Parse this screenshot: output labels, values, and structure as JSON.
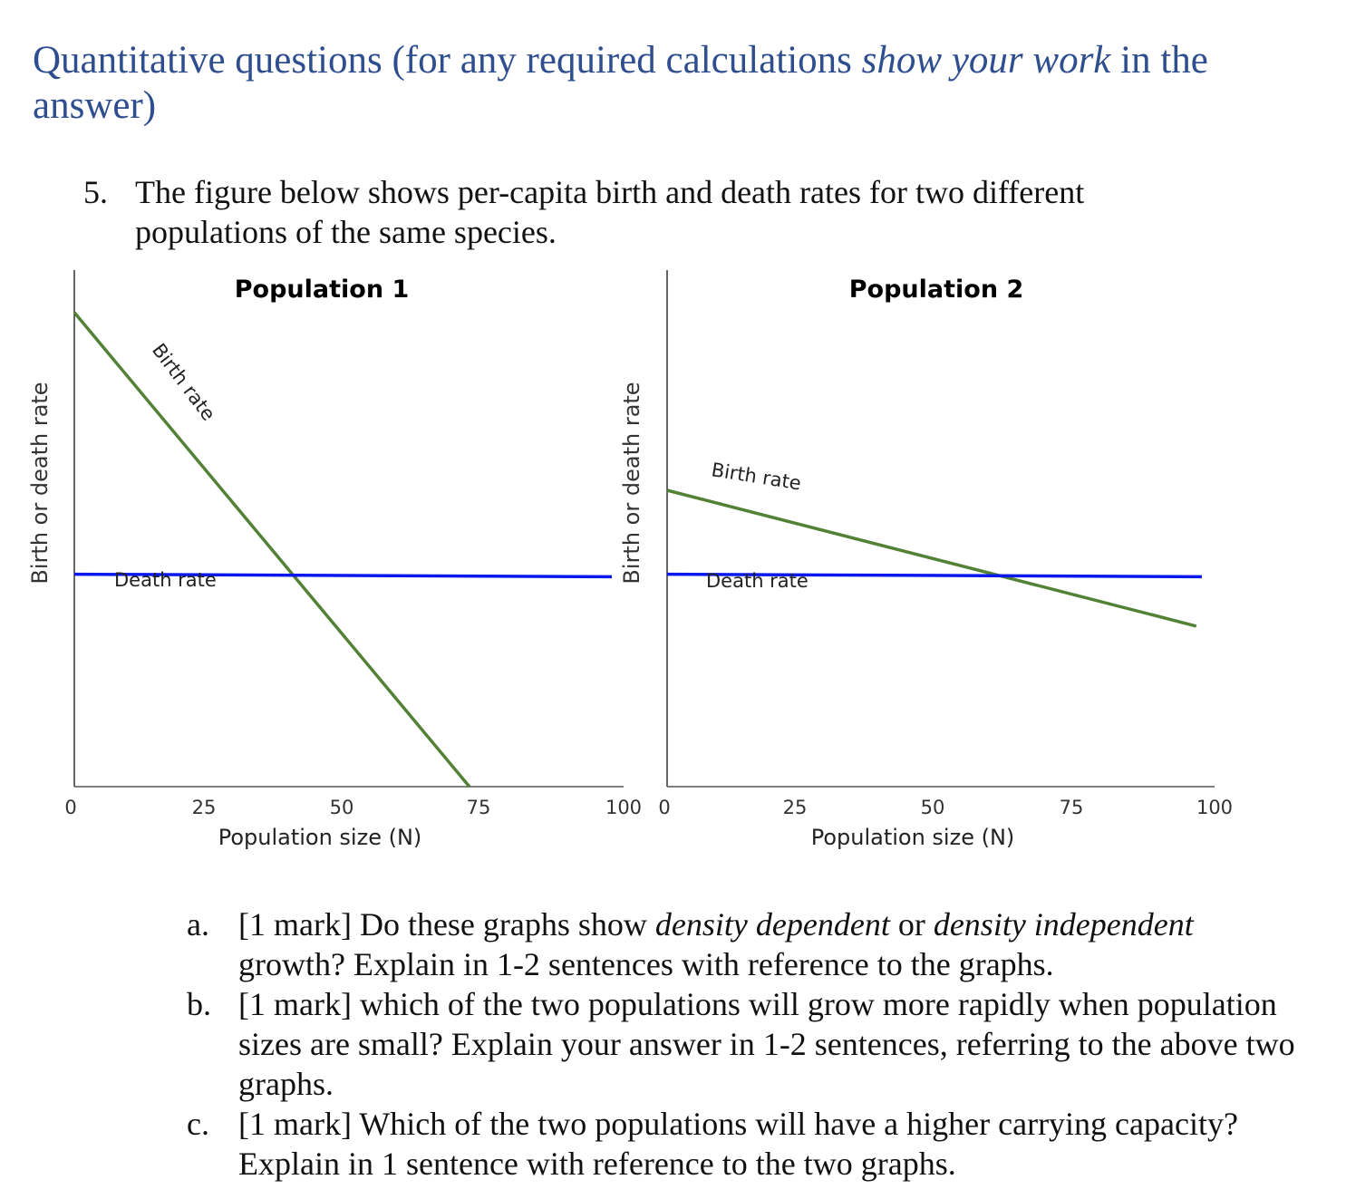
{
  "heading": {
    "part1": "Quantitative questions (for any required calculations ",
    "emphasis": "show your work",
    "part2": " in the answer)"
  },
  "question5": {
    "number": "5.",
    "text": "The figure below shows per-capita birth and death rates for two different populations of the same species."
  },
  "chart_data": [
    {
      "type": "line",
      "title": "Population 1",
      "xlabel": "Population size (N)",
      "ylabel": "Birth or death rate",
      "xlim": [
        0,
        100
      ],
      "xticks": [
        "0",
        "25",
        "50",
        "75",
        "100"
      ],
      "ylim": [
        0,
        1
      ],
      "grid": false,
      "series": [
        {
          "name": "Birth rate",
          "color": "#538135",
          "x": [
            0,
            73.5
          ],
          "y": [
            0.96,
            0
          ]
        },
        {
          "name": "Death rate",
          "color": "#0a18ee",
          "x": [
            0,
            100
          ],
          "y": [
            0.43,
            0.425
          ]
        }
      ]
    },
    {
      "type": "line",
      "title": "Population 2",
      "xlabel": "Population size (N)",
      "ylabel": "Birth or death rate",
      "xlim": [
        0,
        100
      ],
      "xticks": [
        "0",
        "25",
        "50",
        "75",
        "100"
      ],
      "ylim": [
        0,
        1
      ],
      "grid": false,
      "series": [
        {
          "name": "Birth rate",
          "color": "#538135",
          "x": [
            0,
            96.5
          ],
          "y": [
            0.6,
            0.325
          ]
        },
        {
          "name": "Death rate",
          "color": "#0a18ee",
          "x": [
            0,
            97.5
          ],
          "y": [
            0.43,
            0.425
          ]
        }
      ]
    }
  ],
  "subquestions": [
    {
      "letter": "a.",
      "pre": "[1 mark] Do these graphs show ",
      "em1": "density dependent",
      "mid": " or ",
      "em2": "density independent",
      "post": " growth? Explain in 1-2 sentences with reference to the graphs."
    },
    {
      "letter": "b.",
      "text": "[1 mark] which of the two populations will grow more rapidly when population sizes are small? Explain your answer in 1-2 sentences, referring to the above two graphs."
    },
    {
      "letter": "c.",
      "text": "[1 mark] Which of the two populations will have a higher carrying capacity? Explain in 1 sentence with reference to the two graphs."
    }
  ]
}
